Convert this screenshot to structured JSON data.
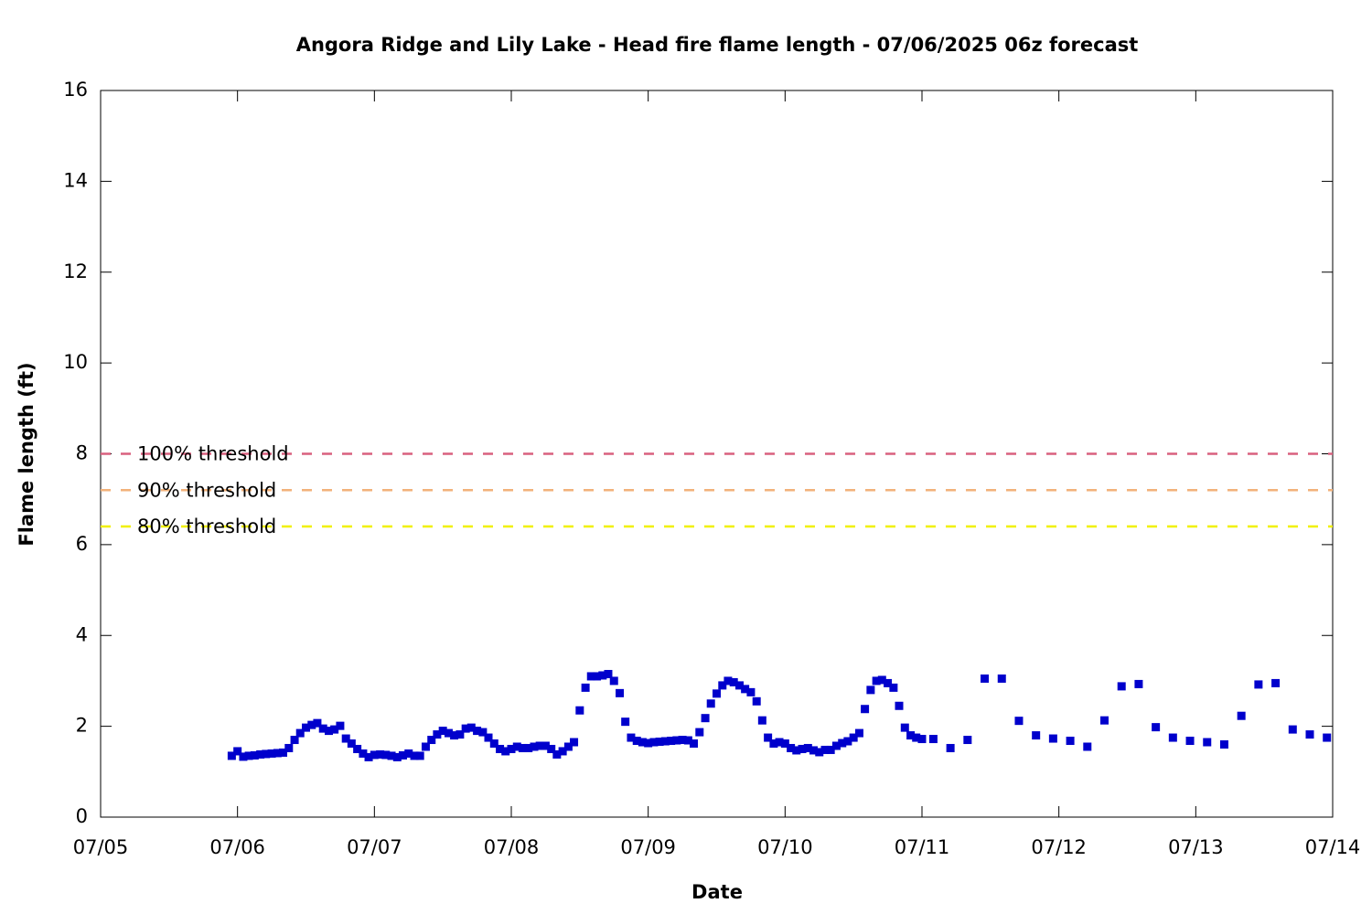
{
  "chart_data": {
    "type": "scatter",
    "title": "Angora Ridge and Lily Lake - Head fire flame length - 07/06/2025 06z forecast",
    "x_label": "Date",
    "y_label": "Flame length (ft)",
    "xlim": [
      5,
      14
    ],
    "xticks": [
      {
        "value": 5,
        "label": "07/05"
      },
      {
        "value": 6,
        "label": "07/06"
      },
      {
        "value": 7,
        "label": "07/07"
      },
      {
        "value": 8,
        "label": "07/08"
      },
      {
        "value": 9,
        "label": "07/09"
      },
      {
        "value": 10,
        "label": "07/10"
      },
      {
        "value": 11,
        "label": "07/11"
      },
      {
        "value": 12,
        "label": "07/12"
      },
      {
        "value": 13,
        "label": "07/13"
      },
      {
        "value": 14,
        "label": "07/14"
      }
    ],
    "ylim": [
      0,
      16
    ],
    "yticks": [
      0,
      2,
      4,
      6,
      8,
      10,
      12,
      14,
      16
    ],
    "thresholds": [
      {
        "label": "100% threshold",
        "value": 8,
        "color": "#d9607f"
      },
      {
        "label": "90% threshold",
        "value": 7.2,
        "color": "#f2b27a"
      },
      {
        "label": "80% threshold",
        "value": 6.4,
        "color": "#f0f000"
      }
    ],
    "series": [
      {
        "color": "#0000cc",
        "x": [
          5.958,
          6,
          6.042,
          6.083,
          6.125,
          6.167,
          6.208,
          6.25,
          6.292,
          6.333,
          6.375,
          6.417,
          6.458,
          6.5,
          6.542,
          6.583,
          6.625,
          6.667,
          6.708,
          6.75,
          6.792,
          6.833,
          6.875,
          6.917,
          6.958,
          7,
          7.042,
          7.083,
          7.125,
          7.167,
          7.208,
          7.25,
          7.292,
          7.333,
          7.375,
          7.417,
          7.458,
          7.5,
          7.542,
          7.583,
          7.625,
          7.667,
          7.708,
          7.75,
          7.792,
          7.833,
          7.875,
          7.917,
          7.958,
          8,
          8.042,
          8.083,
          8.125,
          8.167,
          8.208,
          8.25,
          8.292,
          8.333,
          8.375,
          8.417,
          8.458,
          8.5,
          8.542,
          8.583,
          8.625,
          8.667,
          8.708,
          8.75,
          8.792,
          8.833,
          8.875,
          8.917,
          8.958,
          9,
          9.042,
          9.083,
          9.125,
          9.167,
          9.208,
          9.25,
          9.292,
          9.333,
          9.375,
          9.417,
          9.458,
          9.5,
          9.542,
          9.583,
          9.625,
          9.667,
          9.708,
          9.75,
          9.792,
          9.833,
          9.875,
          9.917,
          9.958,
          10,
          10.042,
          10.083,
          10.125,
          10.167,
          10.208,
          10.25,
          10.292,
          10.333,
          10.375,
          10.417,
          10.458,
          10.5,
          10.542,
          10.583,
          10.625,
          10.667,
          10.708,
          10.75,
          10.792,
          10.833,
          10.875,
          10.917,
          10.958,
          11,
          11.083,
          11.208,
          11.333,
          11.458,
          11.583,
          11.708,
          11.833,
          11.958,
          12.083,
          12.208,
          12.333,
          12.458,
          12.583,
          12.708,
          12.833,
          12.958,
          13.083,
          13.208,
          13.333,
          13.458,
          13.583,
          13.708,
          13.833,
          13.958
        ],
        "values": [
          1.35,
          1.45,
          1.33,
          1.35,
          1.36,
          1.38,
          1.39,
          1.4,
          1.41,
          1.42,
          1.52,
          1.7,
          1.85,
          1.97,
          2.03,
          2.07,
          1.95,
          1.9,
          1.93,
          2.01,
          1.73,
          1.62,
          1.5,
          1.4,
          1.32,
          1.37,
          1.38,
          1.37,
          1.35,
          1.32,
          1.36,
          1.4,
          1.35,
          1.35,
          1.55,
          1.7,
          1.82,
          1.9,
          1.85,
          1.8,
          1.82,
          1.95,
          1.97,
          1.9,
          1.87,
          1.75,
          1.62,
          1.5,
          1.45,
          1.5,
          1.55,
          1.52,
          1.52,
          1.55,
          1.57,
          1.57,
          1.5,
          1.38,
          1.45,
          1.55,
          1.65,
          2.35,
          2.85,
          3.1,
          3.1,
          3.12,
          3.15,
          3.0,
          2.73,
          2.1,
          1.75,
          1.68,
          1.65,
          1.63,
          1.65,
          1.66,
          1.67,
          1.68,
          1.69,
          1.7,
          1.69,
          1.62,
          1.87,
          2.18,
          2.5,
          2.72,
          2.9,
          3.0,
          2.97,
          2.9,
          2.82,
          2.75,
          2.55,
          2.13,
          1.75,
          1.62,
          1.65,
          1.62,
          1.52,
          1.47,
          1.5,
          1.52,
          1.47,
          1.43,
          1.48,
          1.48,
          1.57,
          1.63,
          1.67,
          1.75,
          1.85,
          2.38,
          2.8,
          3.0,
          3.02,
          2.95,
          2.85,
          2.45,
          1.97,
          1.8,
          1.75,
          1.72,
          1.72,
          1.52,
          1.7,
          3.05,
          3.05,
          2.12,
          1.8,
          1.73,
          1.68,
          1.55,
          2.13,
          2.88,
          2.93,
          1.98,
          1.75,
          1.68,
          1.65,
          1.6,
          2.23,
          2.92,
          2.95,
          1.93,
          1.82,
          1.75
        ]
      }
    ]
  }
}
